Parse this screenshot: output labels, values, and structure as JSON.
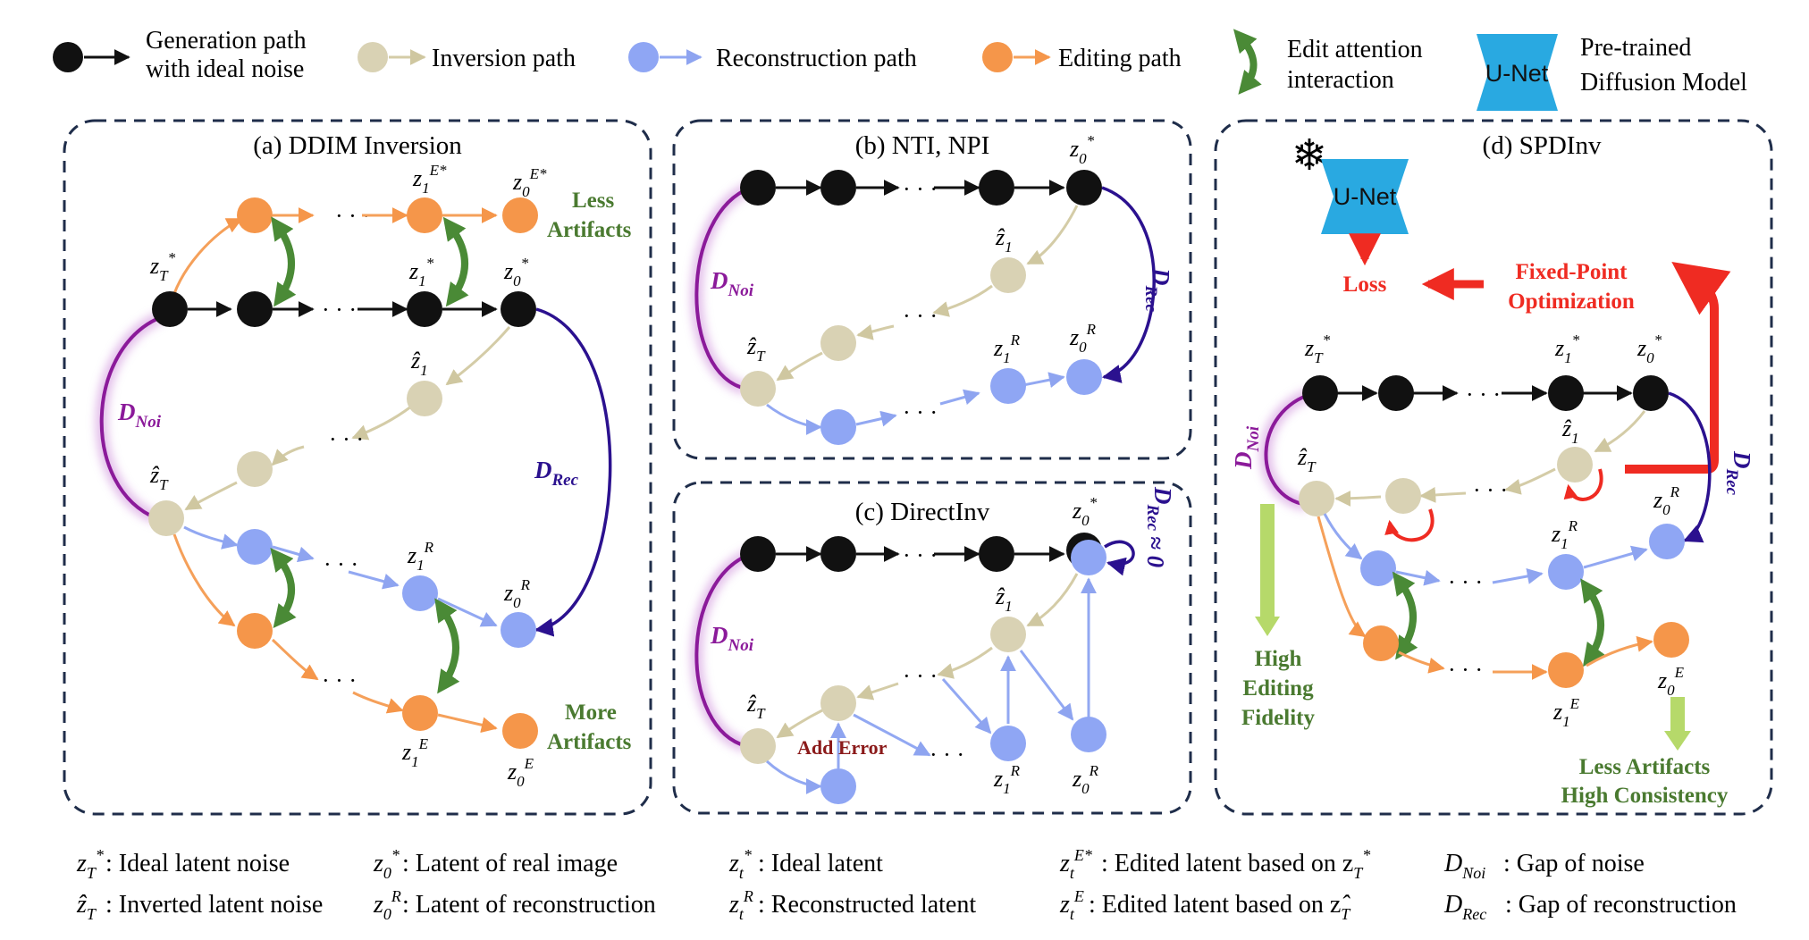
{
  "legend": {
    "generation": "Generation path\nwith ideal noise",
    "inversion": "Inversion path",
    "reconstruction": "Reconstruction path",
    "editing": "Editing path",
    "attention": "Edit attention\ninteraction",
    "unet_box": "U-Net",
    "pretrained": "Pre-trained\nDiffusion Model"
  },
  "panels": {
    "a": "(a) DDIM Inversion",
    "b": "(b) NTI, NPI",
    "c": "(c) DirectInv",
    "d": "(d) SPDInv"
  },
  "notes": {
    "less_artifacts": "Less\nArtifacts",
    "more_artifacts": "More\nArtifacts",
    "add_error": "Add Error",
    "loss": "Loss",
    "fixed_point": "Fixed-Point\nOptimization",
    "high_editing": "High\nEditing\nFidelity",
    "less_high": "Less Artifacts\nHigh Consistency",
    "unet_frozen": "U-Net",
    "snowflake": "❄",
    "d_noi_main": "D",
    "d_noi_sub": "Noi",
    "d_rec_main": "D",
    "d_rec_sub": "Rec",
    "d_rec_approx": "≈ 0",
    "ellipsis": "· · ·"
  },
  "footer": [
    {
      "sym": "z",
      "sup": "*",
      "sub": "T",
      "hat": false,
      "text": ": Ideal latent noise"
    },
    {
      "sym": "z",
      "sup": "",
      "sub": "T",
      "hat": true,
      "text": ": Inverted latent noise"
    },
    {
      "sym": "z",
      "sup": "*",
      "sub": "0",
      "hat": false,
      "text": ": Latent of real image"
    },
    {
      "sym": "z",
      "sup": "R",
      "sub": "0",
      "hat": false,
      "text": ": Latent of reconstruction"
    },
    {
      "sym": "z",
      "sup": "*",
      "sub": "t",
      "hat": false,
      "text": ": Ideal latent"
    },
    {
      "sym": "z",
      "sup": "R",
      "sub": "t",
      "hat": false,
      "text": ": Reconstructed latent"
    },
    {
      "sym": "z",
      "sup": "E*",
      "sub": "t",
      "hat": false,
      "text": ": Edited latent based on z"
    },
    {
      "sym": "z",
      "sup": "E",
      "sub": "t",
      "hat": false,
      "text": " : Edited latent based on z"
    },
    {
      "sym": "D",
      "sup": "",
      "sub": "Noi",
      "hat": false,
      "text": ": Gap of noise"
    },
    {
      "sym": "D",
      "sup": "",
      "sub": "Rec",
      "hat": false,
      "text": ": Gap of reconstruction"
    }
  ],
  "colors": {
    "generation": "#111111",
    "inversion": "#d9d2b4",
    "reconstruction": "#8fa6f4",
    "editing": "#f5964a",
    "attention": "#4a8a36",
    "noise_gap": "#8b1a9a",
    "rec_gap": "#2b118f",
    "optimization": "#ef2b22",
    "unet": "#29a9e1"
  }
}
